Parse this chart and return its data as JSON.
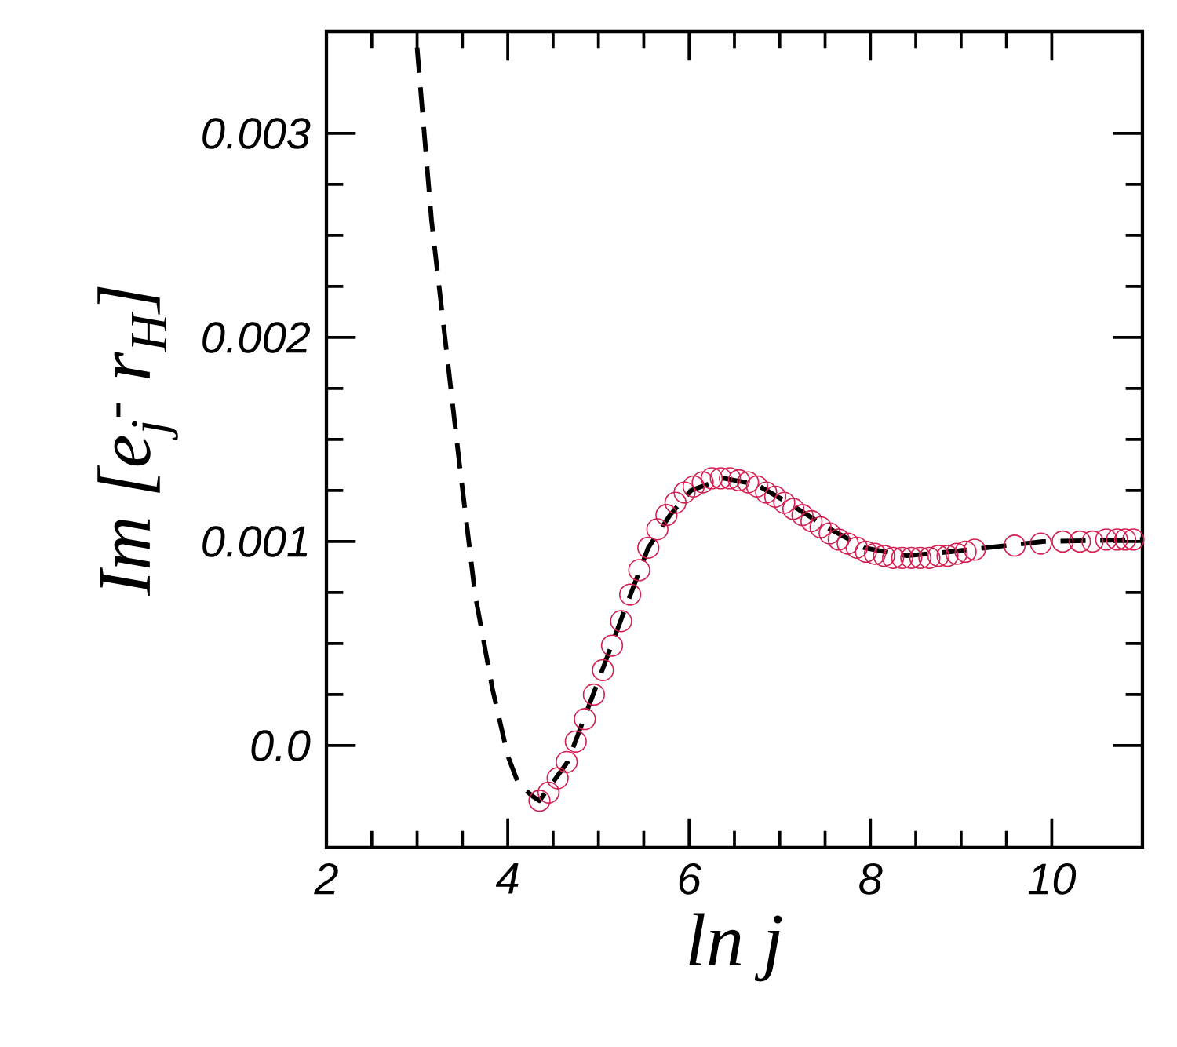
{
  "chart_data": {
    "type": "scatter",
    "xlabel": "ln j",
    "ylabel": "Im [e$_{j}$$^{-}$ r$_{H}$]",
    "xlim": [
      2,
      11
    ],
    "ylim": [
      -0.0005,
      0.0035
    ],
    "xticks": [
      2,
      4,
      6,
      8,
      10
    ],
    "yticks": [
      {
        "value": 0,
        "label": "0.0"
      },
      0.001,
      0.002,
      0.003
    ],
    "legend": false,
    "grid": false,
    "series": [
      {
        "type": "line",
        "color": "#000000",
        "line_style": "dashed",
        "marker": "none",
        "x": [
          3.0,
          3.16,
          3.47,
          3.64,
          3.83,
          4.0,
          4.12,
          4.28,
          4.35,
          4.66,
          4.95,
          5.26,
          5.55,
          5.79,
          6.02,
          6.38,
          6.74,
          7.09,
          7.52,
          7.93,
          8.4,
          8.88,
          9.29,
          9.9,
          11
        ],
        "values": [
          0.00342,
          0.00257,
          0.00137,
          0.00074,
          0.00028,
          -5e-05,
          -0.00019,
          -0.00025,
          -0.00027,
          -8e-05,
          0.00026,
          0.00063,
          0.00097,
          0.00113,
          0.00125,
          0.00131,
          0.00128,
          0.00119,
          0.00107,
          0.00097,
          0.00093,
          0.00095,
          0.00097,
          0.001,
          0.00101
        ]
      },
      {
        "color": "#d21f4f",
        "marker": "circle",
        "x": [
          4.35,
          4.45,
          4.55,
          4.65,
          4.75,
          4.85,
          4.95,
          5.05,
          5.15,
          5.25,
          5.35,
          5.45,
          5.55,
          5.65,
          5.75,
          5.85,
          5.95,
          6.05,
          6.15,
          6.25,
          6.35,
          6.45,
          6.55,
          6.65,
          6.75,
          6.85,
          6.95,
          7.05,
          7.15,
          7.25,
          7.35,
          7.45,
          7.55,
          7.65,
          7.75,
          7.85,
          7.95,
          8.05,
          8.15,
          8.25,
          8.35,
          8.45,
          8.55,
          8.65,
          8.75,
          8.85,
          8.95,
          9.05,
          9.15,
          9.59,
          9.88,
          10.12,
          10.31,
          10.45,
          10.6,
          10.72,
          10.81,
          10.9
        ],
        "values": [
          -0.00027,
          -0.00023,
          -0.00016,
          -8e-05,
          2e-05,
          0.00013,
          0.00025,
          0.00037,
          0.00049,
          0.00061,
          0.00074,
          0.00086,
          0.00097,
          0.00106,
          0.00113,
          0.00119,
          0.00124,
          0.00127,
          0.00129,
          0.00131,
          0.00131,
          0.00131,
          0.0013,
          0.00129,
          0.00127,
          0.00124,
          0.00122,
          0.00119,
          0.00116,
          0.00113,
          0.0011,
          0.00107,
          0.00104,
          0.00101,
          0.00099,
          0.00097,
          0.00095,
          0.00094,
          0.00093,
          0.00092,
          0.00092,
          0.00092,
          0.00092,
          0.00092,
          0.00093,
          0.00093,
          0.00094,
          0.00095,
          0.00096,
          0.00098,
          0.00099,
          0.001,
          0.001,
          0.001,
          0.00101,
          0.00101,
          0.00101,
          0.00101
        ]
      }
    ]
  }
}
